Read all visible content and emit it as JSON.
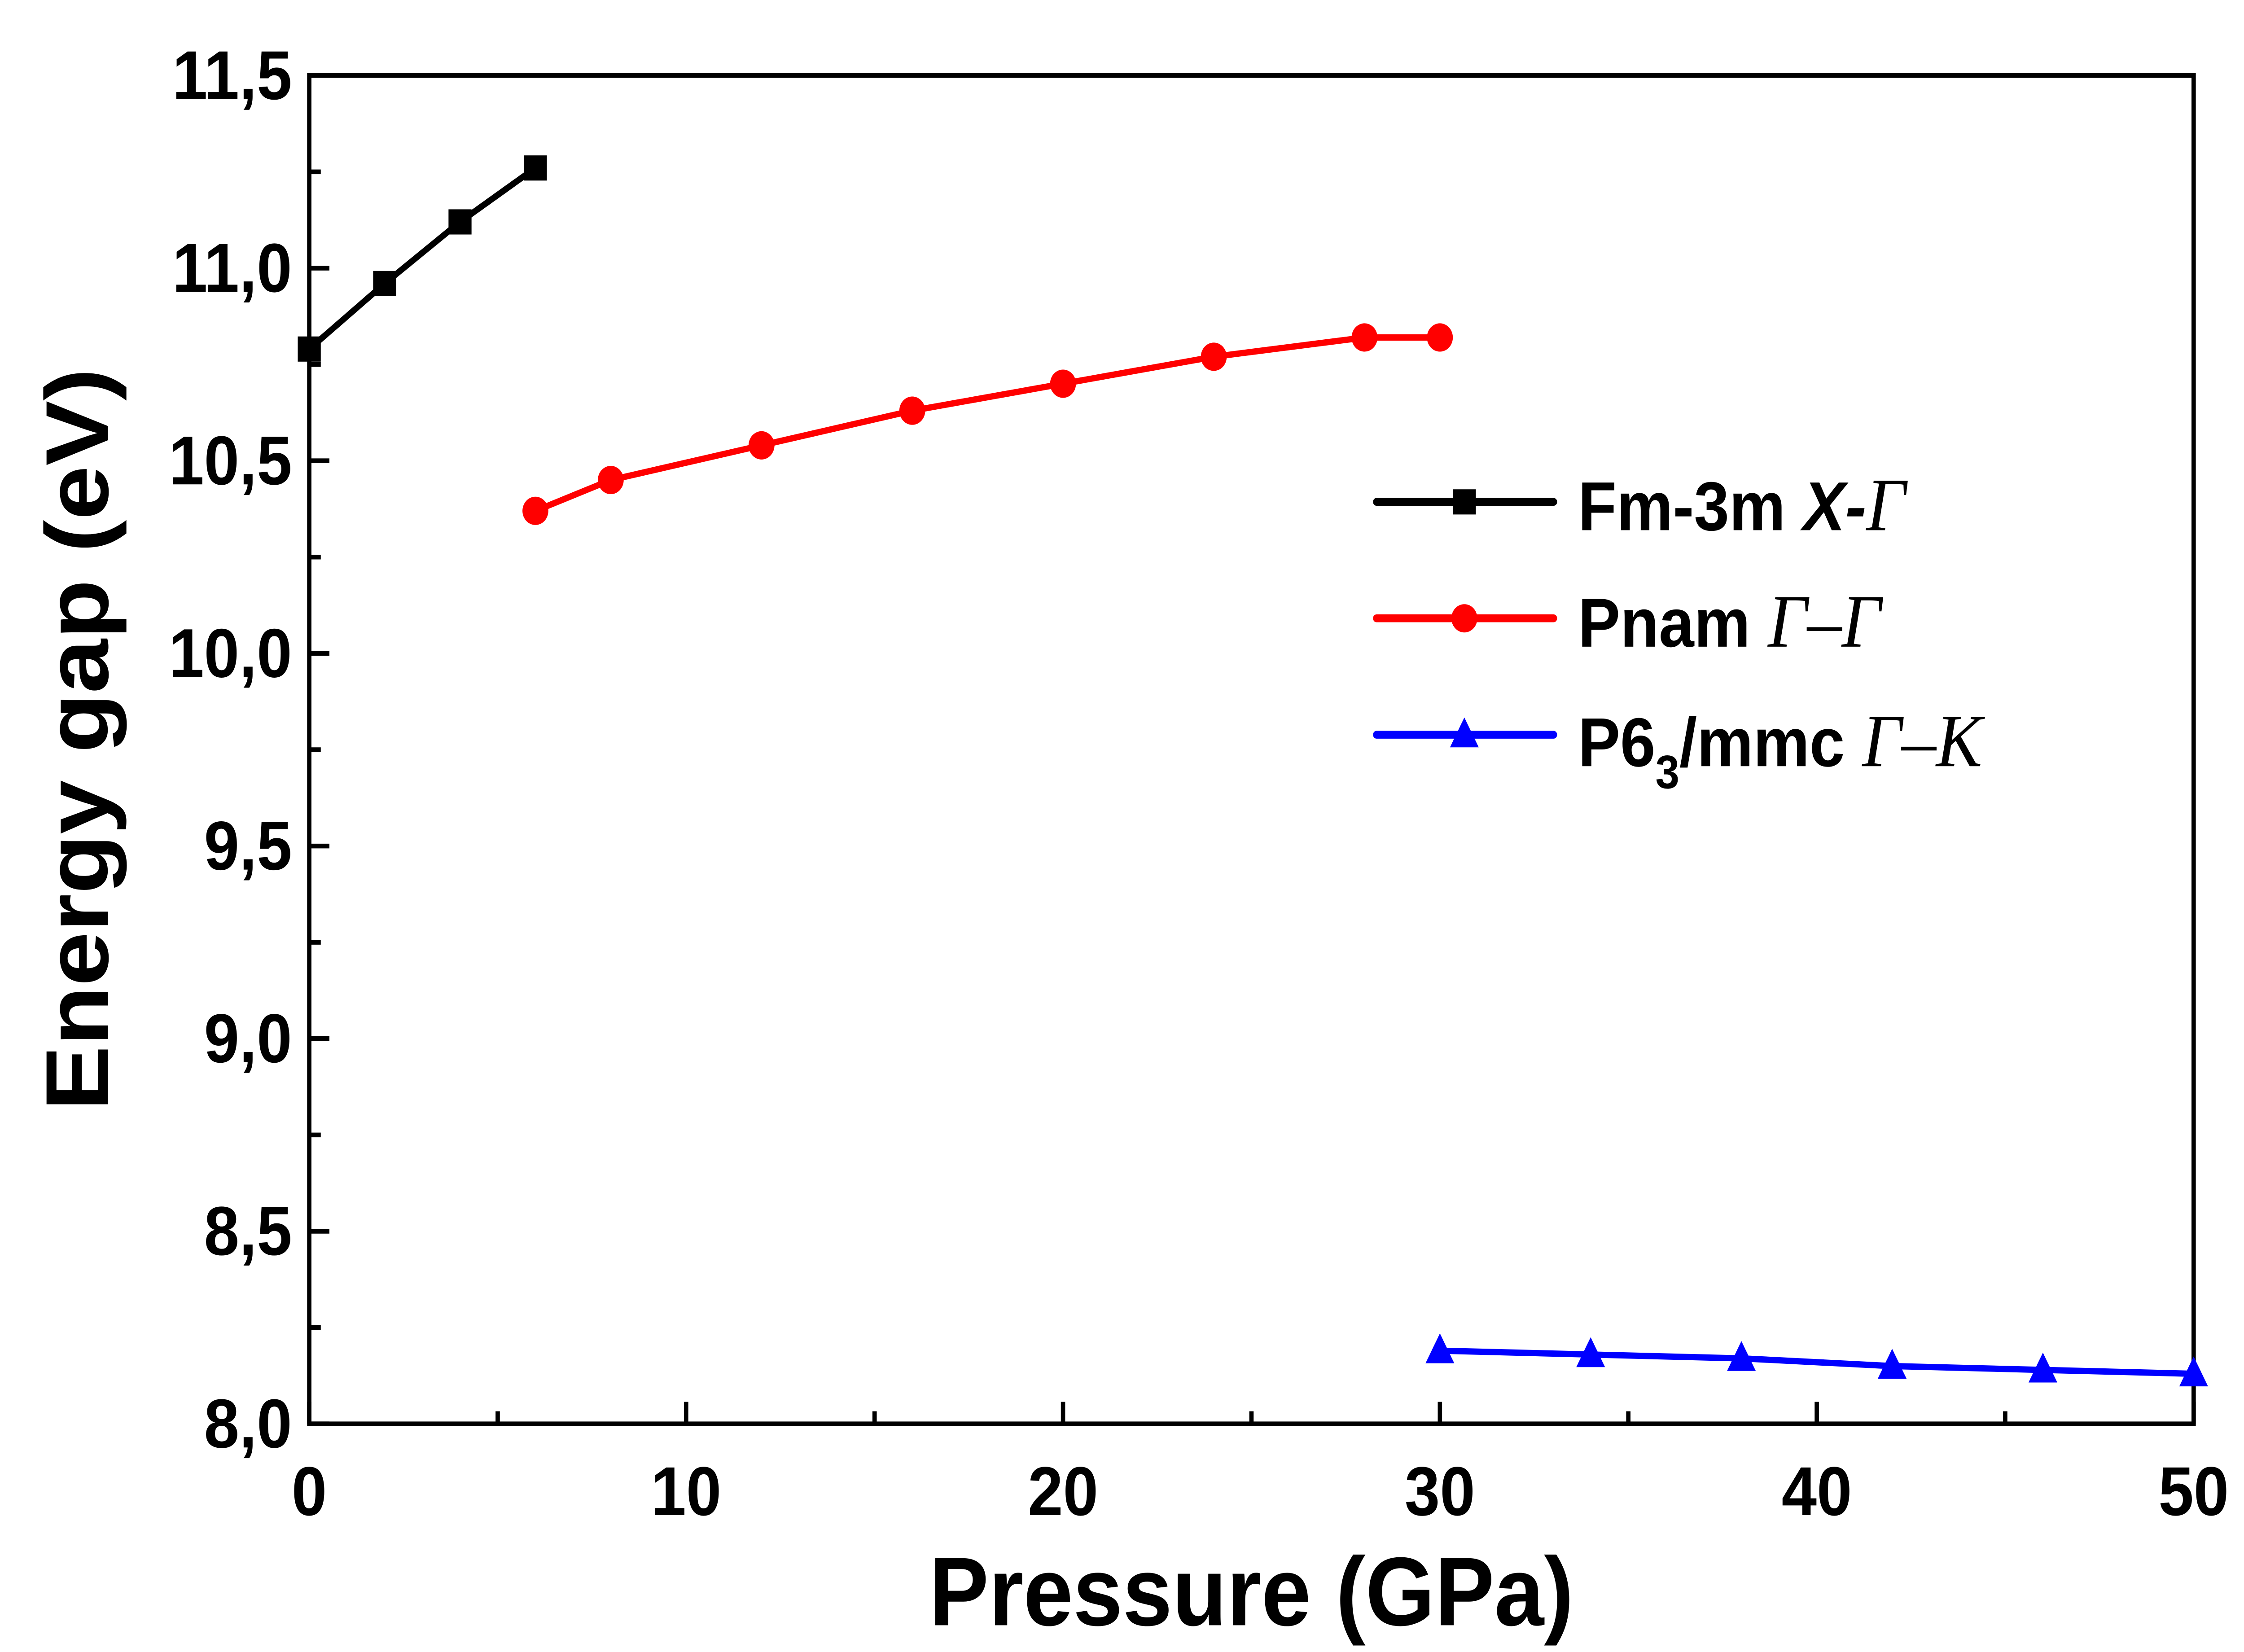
{
  "chart_data": {
    "type": "line",
    "xlabel": "Pressure (GPa)",
    "ylabel": "Energy gap (eV)",
    "xlim": [
      0,
      50
    ],
    "ylim": [
      8.0,
      11.5
    ],
    "xticks": [
      "0",
      "10",
      "20",
      "30",
      "40",
      "50"
    ],
    "yticks": [
      "8,0",
      "8,5",
      "9,0",
      "9,5",
      "10,0",
      "10,5",
      "11,0",
      "11,5"
    ],
    "grid": false,
    "legend_position": "right",
    "series": [
      {
        "name": "Fm-3m X-Γ",
        "label_main": "Fm-3m ",
        "label_bold_italic": "X-",
        "label_italic": "Γ",
        "color": "#000000",
        "marker": "square",
        "x": [
          0,
          2,
          4,
          6
        ],
        "y": [
          10.79,
          10.96,
          11.12,
          11.26
        ]
      },
      {
        "name": "Pnam Γ–Γ",
        "label_main": "Pnam ",
        "label_italic": "Γ–Γ",
        "color": "#ff0000",
        "marker": "circle",
        "x": [
          6,
          8,
          12,
          16,
          20,
          24,
          28,
          30
        ],
        "y": [
          10.37,
          10.45,
          10.54,
          10.63,
          10.7,
          10.77,
          10.82,
          10.82
        ]
      },
      {
        "name": "P63/mmc Γ–K",
        "label_main": "P6",
        "label_sub": "3",
        "label_main2": "/mmc ",
        "label_italic": "Γ–K",
        "color": "#0000ff",
        "marker": "triangle",
        "x": [
          30,
          34,
          38,
          42,
          46,
          50
        ],
        "y": [
          8.19,
          8.18,
          8.17,
          8.15,
          8.14,
          8.13
        ]
      }
    ]
  }
}
